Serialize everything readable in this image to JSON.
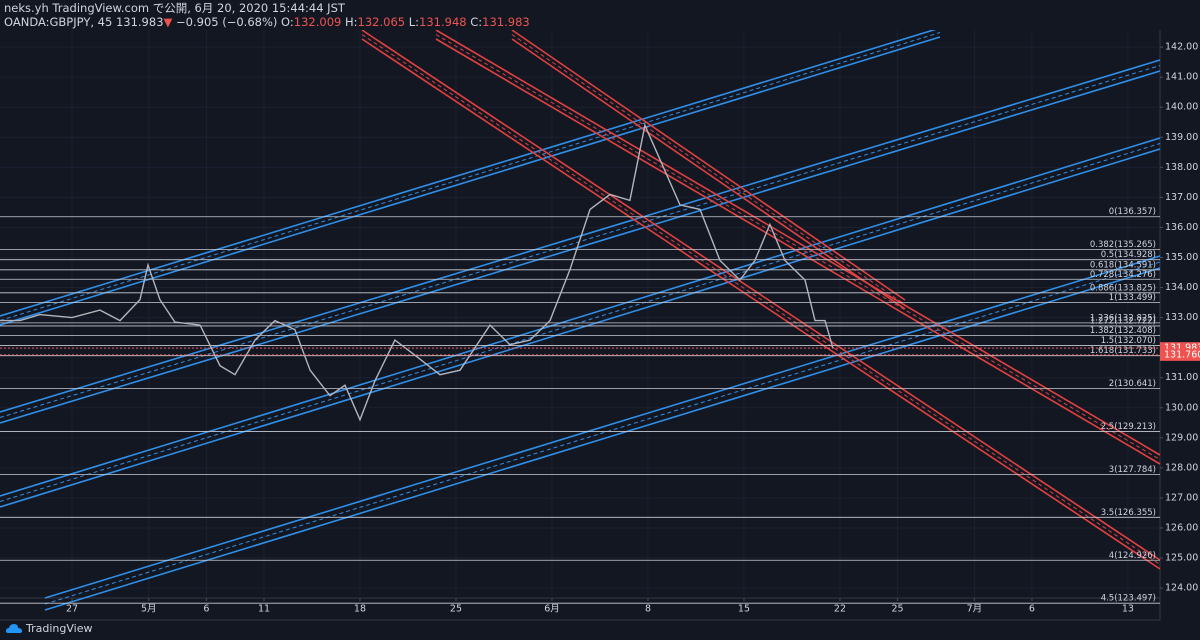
{
  "header": {
    "publisher": "neks.yh TradingView.com で公開, 6月 20, 2020 15:44:44 JST",
    "symbol": "OANDA:GBPJPY, 45",
    "last": "131.983",
    "arrow": "▼",
    "change": "−0.905 (−0.68%)",
    "open_label": "O:",
    "open": "132.009",
    "high_label": "H:",
    "high": "132.065",
    "low_label": "L:",
    "low": "131.948",
    "close_label": "C:",
    "close": "131.983"
  },
  "chart_data": {
    "type": "line",
    "color": "#b2b5be",
    "x": [
      -3.75,
      -2.71,
      -1.67,
      0,
      1.46,
      2.5,
      3.54,
      3.96,
      4.58,
      5.36,
      6.67,
      7.71,
      8.49,
      9.53,
      10.57,
      11.61,
      12.4,
      13.44,
      14.22,
      15,
      15.78,
      16.82,
      17.86,
      19.17,
      20.21,
      21.77,
      22.81,
      23.85,
      24.9,
      25.94,
      26.98,
      28.02,
      29.06,
      29.84,
      30.63,
      31.67,
      32.71,
      33.75,
      34.79,
      35.57,
      36.35,
      37.14,
      38.18,
      38.7,
      39.22,
      39.64
    ],
    "values": [
      132.9,
      132.9,
      133.1,
      133.0,
      133.25,
      132.9,
      133.6,
      134.75,
      133.6,
      132.85,
      132.75,
      131.4,
      131.1,
      132.25,
      132.9,
      132.6,
      131.25,
      130.4,
      130.75,
      129.6,
      130.9,
      132.25,
      131.75,
      131.1,
      131.25,
      132.75,
      132.1,
      132.25,
      132.9,
      134.6,
      136.6,
      137.1,
      136.9,
      139.4,
      138.25,
      136.75,
      136.6,
      134.9,
      134.25,
      134.9,
      136.1,
      134.9,
      134.25,
      132.9,
      132.9,
      131.983
    ],
    "xlim": [
      -3.75,
      56.67
    ],
    "xticks": [
      {
        "value": 0,
        "label": "27"
      },
      {
        "value": 4,
        "label": "5月"
      },
      {
        "value": 7,
        "label": "6"
      },
      {
        "value": 10,
        "label": "11"
      },
      {
        "value": 15,
        "label": "18"
      },
      {
        "value": 20,
        "label": "25"
      },
      {
        "value": 25,
        "label": "6月"
      },
      {
        "value": 30,
        "label": "8"
      },
      {
        "value": 35,
        "label": "15"
      },
      {
        "value": 40,
        "label": "22"
      },
      {
        "value": 43,
        "label": "25"
      },
      {
        "value": 47,
        "label": "7月"
      },
      {
        "value": 50,
        "label": "6"
      },
      {
        "value": 55,
        "label": "13"
      }
    ],
    "ylim": [
      123.67,
      142.57
    ],
    "yticks": [
      {
        "value": 124,
        "label": "124.00"
      },
      {
        "value": 125,
        "label": "125.00"
      },
      {
        "value": 126,
        "label": "126.00"
      },
      {
        "value": 127,
        "label": "127.00"
      },
      {
        "value": 128,
        "label": "128.00"
      },
      {
        "value": 129,
        "label": "129.00"
      },
      {
        "value": 130,
        "label": "130.00"
      },
      {
        "value": 131,
        "label": "131.00"
      },
      {
        "value": 132,
        "label": "132.00"
      },
      {
        "value": 133,
        "label": "133.00"
      },
      {
        "value": 134,
        "label": "134.00"
      },
      {
        "value": 135,
        "label": "135.00"
      },
      {
        "value": 136,
        "label": "136.00"
      },
      {
        "value": 137,
        "label": "137.00"
      },
      {
        "value": 138,
        "label": "138.00"
      },
      {
        "value": 139,
        "label": "139.00"
      },
      {
        "value": 140,
        "label": "140.00"
      },
      {
        "value": 141,
        "label": "141.00"
      },
      {
        "value": 142,
        "label": "142.00"
      }
    ],
    "grid": true,
    "fib_levels": [
      {
        "value": 136.357,
        "label": "0(136.357)"
      },
      {
        "value": 135.265,
        "label": "0.382(135.265)"
      },
      {
        "value": 134.928,
        "label": "0.5(134.928)"
      },
      {
        "value": 134.591,
        "label": "0.618(134.591)"
      },
      {
        "value": 134.276,
        "label": "0.728(134.276)"
      },
      {
        "value": 133.825,
        "label": "0.886(133.825)"
      },
      {
        "value": 133.499,
        "label": "1(133.499)"
      },
      {
        "value": 132.825,
        "label": "1.236(132.825)"
      },
      {
        "value": 132.722,
        "label": "1.272(132.722)"
      },
      {
        "value": 132.408,
        "label": "1.382(132.408)"
      },
      {
        "value": 132.07,
        "label": "1.5(132.070)"
      },
      {
        "value": 131.733,
        "label": "1.618(131.733)"
      },
      {
        "value": 130.641,
        "label": "2(130.641)"
      },
      {
        "value": 129.213,
        "label": "2.5(129.213)"
      },
      {
        "value": 127.784,
        "label": "3(127.784)"
      },
      {
        "value": 126.355,
        "label": "3.5(126.355)"
      },
      {
        "value": 124.926,
        "label": "4(124.926)"
      },
      {
        "value": 123.497,
        "label": "4.5(123.497)"
      }
    ],
    "price_labels": [
      {
        "value": 131.983,
        "label": "131.983"
      },
      {
        "value": 131.76,
        "label": "131.760"
      }
    ]
  },
  "footer": {
    "brand": "TradingView"
  }
}
